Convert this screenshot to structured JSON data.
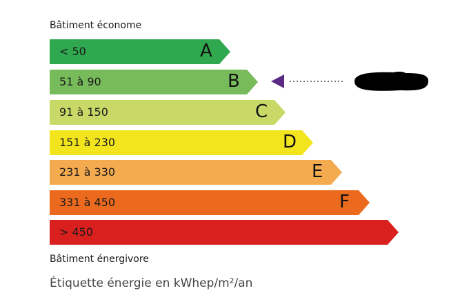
{
  "header": {
    "top_label": "Bâtiment économe",
    "bottom_label": "Bâtiment énergivore"
  },
  "caption": "Étiquette énergie en kWhep/m²/an",
  "classes": [
    {
      "range": "< 50",
      "letter": "A",
      "color": "#2fa84f"
    },
    {
      "range": "51 à 90",
      "letter": "B",
      "color": "#78bb5a"
    },
    {
      "range": "91 à 150",
      "letter": "C",
      "color": "#c8d967"
    },
    {
      "range": "151 à 230",
      "letter": "D",
      "color": "#f2e51e"
    },
    {
      "range": "231 à 330",
      "letter": "E",
      "color": "#f4ab4f"
    },
    {
      "range": "331 à 450",
      "letter": "F",
      "color": "#eb6a1e"
    },
    {
      "range": "> 450",
      "letter": "",
      "color": "#d9201f"
    }
  ],
  "indicator": {
    "class": "B",
    "color": "#5b2a86",
    "redacted_value_color": "#000000"
  }
}
